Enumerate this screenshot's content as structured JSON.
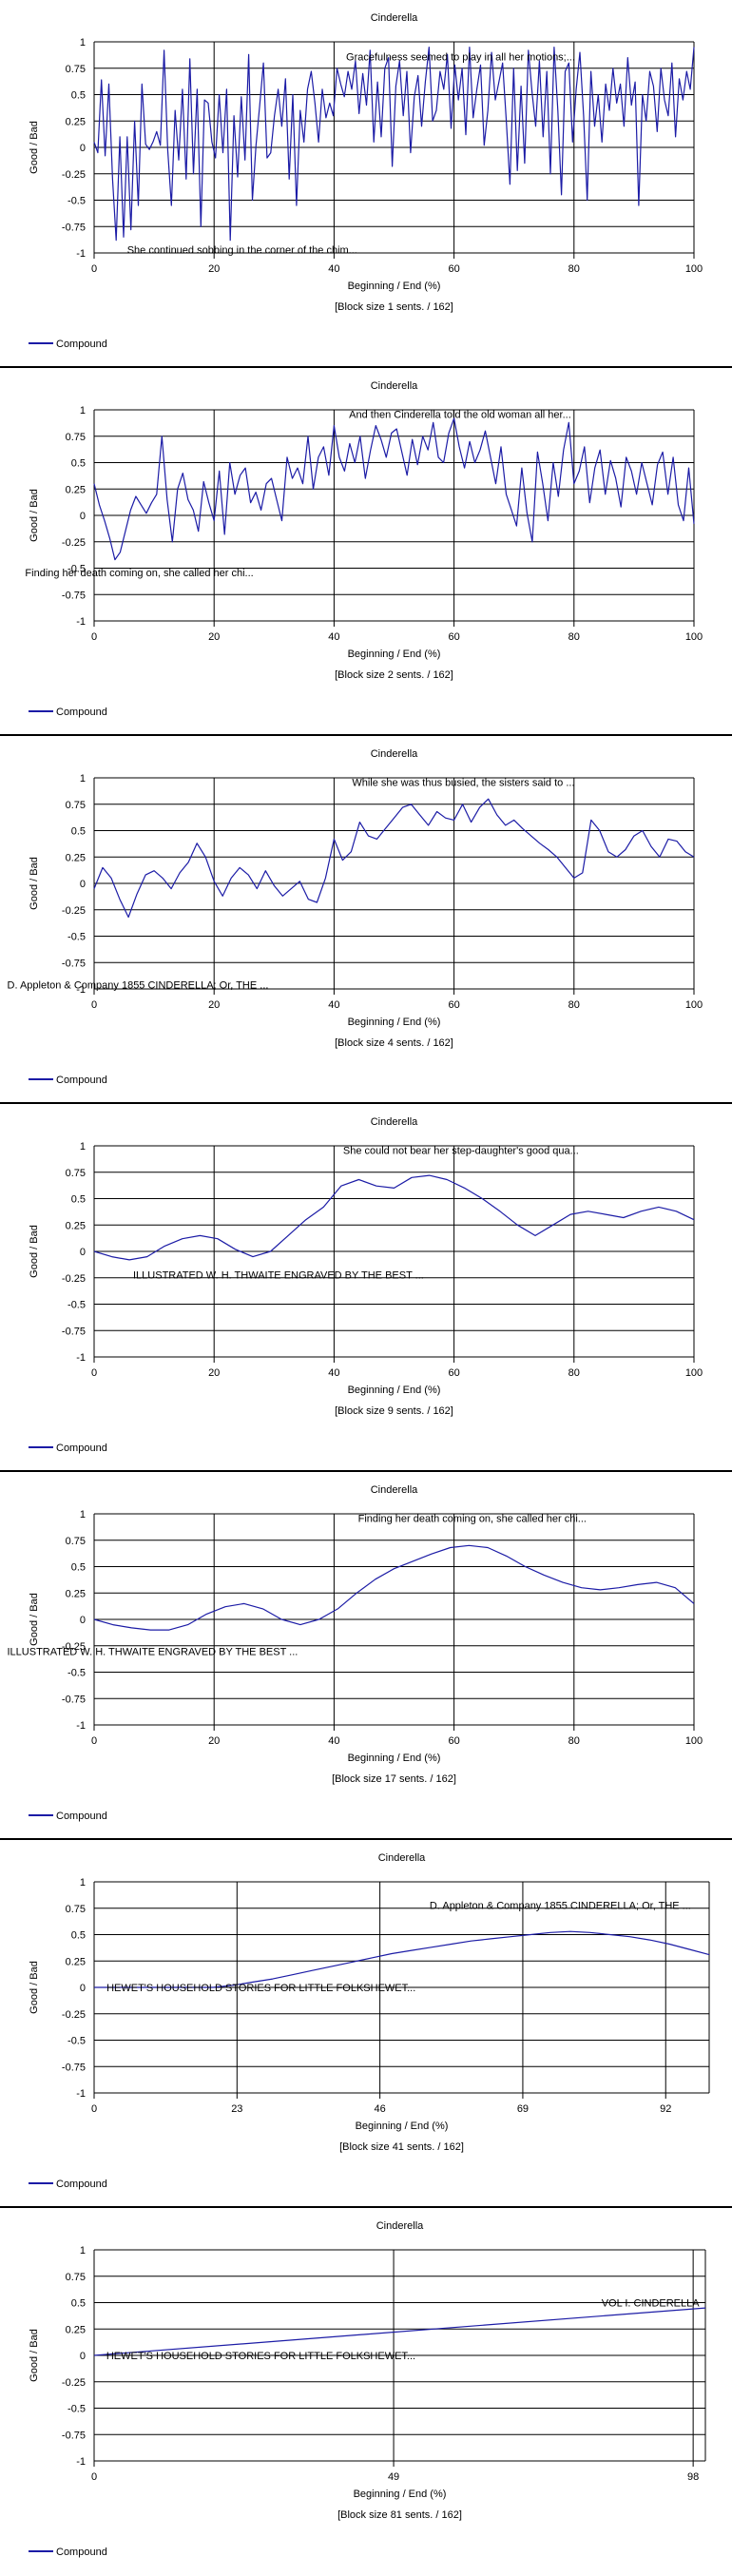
{
  "chart_data": [
    {
      "type": "line",
      "title": "Cinderella",
      "xlabel": "Beginning / End (%)",
      "ylabel": "Good / Bad",
      "caption": "[Block size 1 sents. / 162]",
      "ylim": [
        -1,
        1
      ],
      "yticks": [
        "1",
        "0.75",
        "0.5",
        "0.25",
        "0",
        "-0.25",
        "-0.5",
        "-0.75",
        "-1"
      ],
      "xlim": [
        0,
        100
      ],
      "xticks": [
        0,
        20,
        40,
        60,
        80,
        100
      ],
      "legend": "Compound",
      "series_color": "#1c1ca6",
      "annotations": [
        {
          "text": "Gracefulness seemed to play in all her motions;...",
          "x": 42,
          "y": 0.86
        },
        {
          "text": "She continued sobbing in the corner of the chim...",
          "x": 5.5,
          "y": -0.97
        }
      ],
      "series": [
        {
          "values": [
            0.05,
            -0.05,
            0.64,
            -0.08,
            0.6,
            -0.3,
            -0.88,
            0.1,
            -0.85,
            0.1,
            -0.78,
            0.25,
            -0.55,
            0.6,
            0.03,
            -0.02,
            0.05,
            0.15,
            0.02,
            0.92,
            -0.02,
            -0.55,
            0.35,
            -0.12,
            0.55,
            -0.3,
            0.84,
            -0.25,
            0.55,
            -0.75,
            0.45,
            0.42,
            0.05,
            -0.1,
            0.5,
            -0.05,
            0.55,
            -0.88,
            0.3,
            -0.28,
            0.48,
            -0.12,
            0.88,
            -0.5,
            0.02,
            0.4,
            0.8,
            -0.1,
            -0.05,
            0.3,
            0.55,
            0.2,
            0.65,
            -0.3,
            0.5,
            -0.55,
            0.35,
            0.05,
            0.55,
            0.72,
            0.42,
            0.05,
            0.55,
            0.28,
            0.42,
            0.3,
            0.75,
            0.6,
            0.48,
            0.72,
            0.55,
            0.82,
            0.32,
            0.7,
            0.4,
            0.92,
            0.05,
            0.62,
            0.1,
            0.75,
            0.85,
            -0.18,
            0.58,
            0.82,
            0.3,
            0.72,
            -0.05,
            0.48,
            0.68,
            0.2,
            0.62,
            0.95,
            0.25,
            0.35,
            0.72,
            0.55,
            0.88,
            0.18,
            0.78,
            0.45,
            0.75,
            0.12,
            0.95,
            0.28,
            0.55,
            0.78,
            0.02,
            0.35,
            0.9,
            0.45,
            0.62,
            0.8,
            0.25,
            -0.35,
            0.75,
            -0.22,
            0.58,
            -0.15,
            0.92,
            0.52,
            0.2,
            0.82,
            0.1,
            0.72,
            -0.25,
            0.95,
            0.35,
            -0.45,
            0.72,
            0.8,
            0.05,
            0.55,
            0.9,
            0.3,
            -0.5,
            0.72,
            0.2,
            0.5,
            0.05,
            0.6,
            0.35,
            0.75,
            0.42,
            0.6,
            0.2,
            0.85,
            0.4,
            0.62,
            -0.55,
            0.5,
            0.25,
            0.72,
            0.58,
            0.15,
            0.75,
            0.45,
            0.3,
            0.8,
            0.1,
            0.65,
            0.45,
            0.72,
            0.55,
            0.95
          ]
        }
      ]
    },
    {
      "type": "line",
      "title": "Cinderella",
      "xlabel": "Beginning / End (%)",
      "ylabel": "Good / Bad",
      "caption": "[Block size 2 sents. / 162]",
      "ylim": [
        -1,
        1
      ],
      "yticks": [
        "1",
        "0.75",
        "0.5",
        "0.25",
        "0",
        "-0.25",
        "-0.5",
        "-0.75",
        "-1"
      ],
      "xlim": [
        0,
        100
      ],
      "xticks": [
        0,
        20,
        40,
        60,
        80,
        100
      ],
      "legend": "Compound",
      "series_color": "#1c1ca6",
      "annotations": [
        {
          "text": "And then Cinderella told the old woman all her...",
          "x": 42.5,
          "y": 0.96
        },
        {
          "text": "Finding her death coming on, she called her chi...",
          "x": -11.5,
          "y": -0.54
        }
      ],
      "series": [
        {
          "values": [
            0.3,
            0.1,
            -0.05,
            -0.22,
            -0.42,
            -0.35,
            -0.15,
            0.05,
            0.18,
            0.1,
            0.02,
            0.12,
            0.2,
            0.75,
            0.15,
            -0.25,
            0.25,
            0.4,
            0.15,
            0.05,
            -0.15,
            0.32,
            0.12,
            -0.05,
            0.42,
            -0.18,
            0.5,
            0.2,
            0.38,
            0.45,
            0.12,
            0.22,
            0.05,
            0.3,
            0.35,
            0.15,
            -0.05,
            0.55,
            0.35,
            0.45,
            0.3,
            0.75,
            0.25,
            0.55,
            0.65,
            0.38,
            0.85,
            0.55,
            0.42,
            0.68,
            0.5,
            0.75,
            0.35,
            0.62,
            0.85,
            0.72,
            0.55,
            0.78,
            0.82,
            0.6,
            0.38,
            0.72,
            0.48,
            0.75,
            0.62,
            0.88,
            0.55,
            0.5,
            0.78,
            0.92,
            0.65,
            0.45,
            0.7,
            0.5,
            0.62,
            0.8,
            0.55,
            0.3,
            0.65,
            0.2,
            0.05,
            -0.1,
            0.45,
            0.02,
            -0.25,
            0.6,
            0.3,
            -0.05,
            0.5,
            0.18,
            0.62,
            0.88,
            0.3,
            0.42,
            0.65,
            0.12,
            0.45,
            0.62,
            0.2,
            0.52,
            0.35,
            0.08,
            0.55,
            0.42,
            0.2,
            0.5,
            0.3,
            0.1,
            0.48,
            0.6,
            0.2,
            0.55,
            0.1,
            -0.05,
            0.45,
            -0.08
          ]
        }
      ]
    },
    {
      "type": "line",
      "title": "Cinderella",
      "xlabel": "Beginning / End (%)",
      "ylabel": "Good / Bad",
      "caption": "[Block size 4 sents. / 162]",
      "ylim": [
        -1,
        1
      ],
      "yticks": [
        "1",
        "0.75",
        "0.5",
        "0.25",
        "0",
        "-0.25",
        "-0.5",
        "-0.75",
        "-1"
      ],
      "xlim": [
        0,
        100
      ],
      "xticks": [
        0,
        20,
        40,
        60,
        80,
        100
      ],
      "legend": "Compound",
      "series_color": "#1c1ca6",
      "annotations": [
        {
          "text": "While she was thus busied, the sisters said to ...",
          "x": 43,
          "y": 0.96
        },
        {
          "text": "D. Appleton & Company 1855 CINDERELLA; Or, THE ...",
          "x": -14.5,
          "y": -0.96
        }
      ],
      "series": [
        {
          "values": [
            -0.05,
            0.15,
            0.05,
            -0.15,
            -0.32,
            -0.1,
            0.08,
            0.12,
            0.05,
            -0.05,
            0.1,
            0.2,
            0.38,
            0.25,
            0.02,
            -0.12,
            0.05,
            0.15,
            0.08,
            -0.05,
            0.12,
            -0.02,
            -0.12,
            -0.05,
            0.02,
            -0.15,
            -0.18,
            0.05,
            0.42,
            0.22,
            0.3,
            0.58,
            0.45,
            0.42,
            0.52,
            0.62,
            0.72,
            0.75,
            0.65,
            0.55,
            0.68,
            0.62,
            0.6,
            0.75,
            0.58,
            0.72,
            0.8,
            0.65,
            0.55,
            0.6,
            0.52,
            0.45,
            0.38,
            0.32,
            0.25,
            0.15,
            0.05,
            0.1,
            0.6,
            0.5,
            0.3,
            0.25,
            0.32,
            0.45,
            0.5,
            0.35,
            0.25,
            0.42,
            0.4,
            0.3,
            0.25
          ]
        }
      ]
    },
    {
      "type": "line",
      "title": "Cinderella",
      "xlabel": "Beginning / End (%)",
      "ylabel": "Good / Bad",
      "caption": "[Block size 9 sents. / 162]",
      "ylim": [
        -1,
        1
      ],
      "yticks": [
        "1",
        "0.75",
        "0.5",
        "0.25",
        "0",
        "-0.25",
        "-0.5",
        "-0.75",
        "-1"
      ],
      "xlim": [
        0,
        100
      ],
      "xticks": [
        0,
        20,
        40,
        60,
        80,
        100
      ],
      "legend": "Compound",
      "series_color": "#1c1ca6",
      "annotations": [
        {
          "text": "She could not bear her step-daughter's good qua...",
          "x": 41.5,
          "y": 0.96
        },
        {
          "text": "ILLUSTRATED W. H. THWAITE ENGRAVED BY THE BEST ...",
          "x": 6.5,
          "y": -0.22
        }
      ],
      "series": [
        {
          "values": [
            0.0,
            -0.05,
            -0.08,
            -0.05,
            0.05,
            0.12,
            0.15,
            0.12,
            0.02,
            -0.05,
            0.0,
            0.15,
            0.3,
            0.42,
            0.62,
            0.68,
            0.62,
            0.6,
            0.7,
            0.72,
            0.68,
            0.6,
            0.5,
            0.38,
            0.25,
            0.15,
            0.25,
            0.35,
            0.38,
            0.35,
            0.32,
            0.38,
            0.42,
            0.38,
            0.3
          ]
        }
      ]
    },
    {
      "type": "line",
      "title": "Cinderella",
      "xlabel": "Beginning / End (%)",
      "ylabel": "Good / Bad",
      "caption": "[Block size 17 sents. / 162]",
      "ylim": [
        -1,
        1
      ],
      "yticks": [
        "1",
        "0.75",
        "0.5",
        "0.25",
        "0",
        "-0.25",
        "-0.5",
        "-0.75",
        "-1"
      ],
      "xlim": [
        0,
        100
      ],
      "xticks": [
        0,
        20,
        40,
        60,
        80,
        100
      ],
      "legend": "Compound",
      "series_color": "#1c1ca6",
      "annotations": [
        {
          "text": "Finding her death coming on, she called her chi...",
          "x": 44,
          "y": 0.96
        },
        {
          "text": "ILLUSTRATED W. H. THWAITE ENGRAVED BY THE BEST ...",
          "x": -14.5,
          "y": -0.3
        }
      ],
      "series": [
        {
          "values": [
            0.0,
            -0.05,
            -0.08,
            -0.1,
            -0.1,
            -0.05,
            0.05,
            0.12,
            0.15,
            0.1,
            0.0,
            -0.05,
            0.0,
            0.1,
            0.25,
            0.38,
            0.48,
            0.55,
            0.62,
            0.68,
            0.7,
            0.68,
            0.6,
            0.5,
            0.42,
            0.35,
            0.3,
            0.28,
            0.3,
            0.33,
            0.35,
            0.3,
            0.15
          ]
        }
      ]
    },
    {
      "type": "line",
      "title": "Cinderella",
      "xlabel": "Beginning / End (%)",
      "ylabel": "Good / Bad",
      "caption": "[Block size 41 sents. / 162]",
      "ylim": [
        -1,
        1
      ],
      "yticks": [
        "1",
        "0.75",
        "0.5",
        "0.25",
        "0",
        "-0.25",
        "-0.5",
        "-0.75",
        "-1"
      ],
      "xlim": [
        0,
        99
      ],
      "xticks": [
        0,
        23,
        46,
        69,
        92
      ],
      "legend": "Compound",
      "series_color": "#1c1ca6",
      "annotations": [
        {
          "text": "D. Appleton & Company 1855 CINDERELLA; Or, THE ...",
          "x": 54,
          "y": 0.78
        },
        {
          "text": "HEWET'S HOUSEHOLD STORIES FOR LITTLE FOLKSHEWET...",
          "x": 2,
          "y": 0.0
        }
      ],
      "series": [
        {
          "values": [
            0.0,
            0.0,
            0.0,
            0.0,
            0.0,
            0.0,
            0.0,
            0.02,
            0.05,
            0.08,
            0.12,
            0.16,
            0.2,
            0.24,
            0.28,
            0.32,
            0.35,
            0.38,
            0.41,
            0.44,
            0.46,
            0.48,
            0.5,
            0.52,
            0.53,
            0.52,
            0.5,
            0.48,
            0.45,
            0.41,
            0.36,
            0.31
          ]
        }
      ]
    },
    {
      "type": "line",
      "title": "Cinderella",
      "xlabel": "Beginning / End (%)",
      "ylabel": "Good / Bad",
      "caption": "[Block size 81 sents. / 162]",
      "ylim": [
        -1,
        1
      ],
      "yticks": [
        "1",
        "0.75",
        "0.5",
        "0.25",
        "0",
        "-0.25",
        "-0.5",
        "-0.75",
        "-1"
      ],
      "xlim": [
        0,
        100
      ],
      "xticks": [
        0,
        49,
        98
      ],
      "legend": "Compound",
      "series_color": "#1c1ca6",
      "annotations": [
        {
          "text": "VOL I. CINDERELLA",
          "x": 83,
          "y": 0.5
        },
        {
          "text": "HEWET'S HOUSEHOLD STORIES FOR LITTLE FOLKSHEWET...",
          "x": 2,
          "y": 0.0
        }
      ],
      "series": [
        {
          "values": [
            0.0,
            0.45
          ]
        }
      ]
    }
  ]
}
